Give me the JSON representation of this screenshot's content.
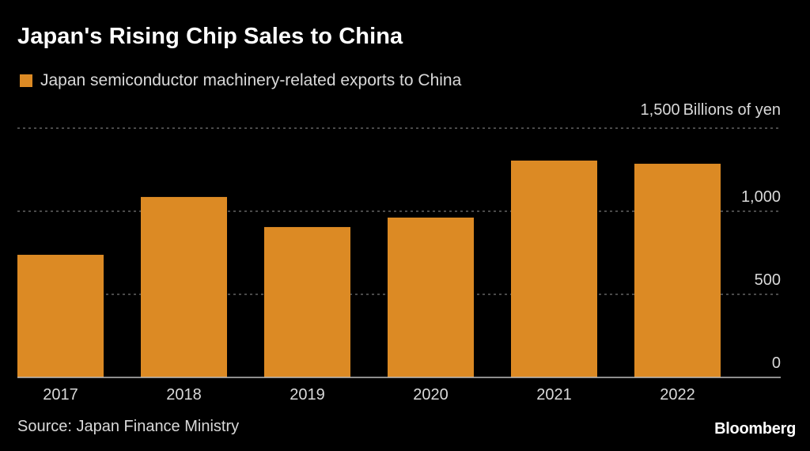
{
  "header": {
    "title": "Japan's Rising Chip Sales to China"
  },
  "legend": {
    "label": "Japan semiconductor machinery-related exports to China",
    "color": "#dc8a24"
  },
  "axis": {
    "unit_label": "Billions of yen"
  },
  "footer": {
    "source": "Source: Japan Finance Ministry",
    "brand": "Bloomberg"
  },
  "colors": {
    "background": "#000000",
    "bar": "#dc8a24",
    "gridline": "#777777",
    "axis_line": "#bdbdbd",
    "tick_text": "#d9d9d9"
  },
  "chart_data": {
    "type": "bar",
    "title": "Japan's Rising Chip Sales to China",
    "xlabel": "",
    "ylabel": "Billions of yen",
    "categories": [
      "2017",
      "2018",
      "2019",
      "2020",
      "2021",
      "2022"
    ],
    "series": [
      {
        "name": "Japan semiconductor machinery-related exports to China",
        "values": [
          738,
          1086,
          905,
          962,
          1305,
          1286
        ]
      }
    ],
    "ylim": [
      0,
      1500
    ],
    "yticks": [
      0,
      500,
      1000,
      1500
    ],
    "ytick_labels": [
      "0",
      "500",
      "1,000",
      "1,500"
    ],
    "grid": true,
    "legend_position": "top-left",
    "y_axis_side": "right"
  }
}
